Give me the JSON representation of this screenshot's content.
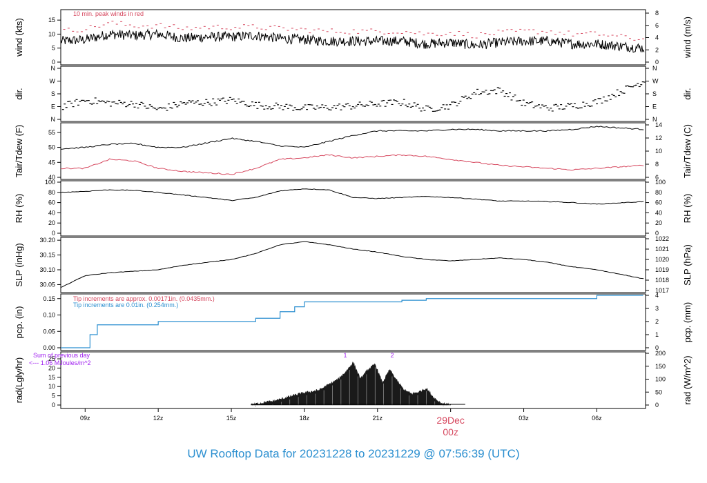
{
  "footer": "UW Rooftop Data for 20231228  to  20231229 @ 07:56:39  (UTC)",
  "colors": {
    "black": "#000000",
    "red": "#d6475e",
    "blue": "#2b8fd0",
    "purple": "#a020f0",
    "radfill": "#1a1a1a"
  },
  "x_axis": {
    "ticks": [
      "09z",
      "12z",
      "15z",
      "18z",
      "21z",
      "29Dec",
      "03z",
      "06z"
    ],
    "date_label": "29Dec",
    "date_sub": "00z"
  },
  "chart_data": [
    {
      "type": "line",
      "name": "wind",
      "ylabel_left": "wind (kts)",
      "ylabel_right": "wind (m/s)",
      "yticks_left": [
        0,
        5,
        10,
        15
      ],
      "yticks_right": [
        0,
        2,
        4,
        6,
        8
      ],
      "ylim": [
        0,
        17.5
      ],
      "annotation": "10 min. peak winds in red",
      "series": [
        {
          "color": "black",
          "x": [
            8,
            9,
            10,
            11,
            12,
            13,
            14,
            15,
            16,
            17,
            18,
            19,
            20,
            21,
            22,
            23,
            24,
            25,
            26,
            27,
            28,
            29,
            30,
            31.9
          ],
          "values": [
            7.5,
            8,
            10,
            9.5,
            10,
            8.5,
            9,
            9,
            9.5,
            8.5,
            8,
            7.5,
            7.5,
            7.5,
            7.5,
            6.5,
            7,
            6,
            7,
            7.5,
            7.5,
            6.5,
            6.5,
            5
          ]
        },
        {
          "color": "red",
          "x": [
            8,
            9,
            10,
            11,
            12,
            13,
            14,
            15,
            16,
            17,
            18,
            19,
            20,
            21,
            22,
            23,
            24,
            25,
            26,
            27,
            28,
            29,
            30,
            31.9
          ],
          "values": [
            11,
            12,
            14,
            13,
            13,
            12,
            12.5,
            12.5,
            12.5,
            12,
            11.5,
            11,
            11,
            11,
            11,
            10,
            10.5,
            9.5,
            10.5,
            11,
            11,
            10,
            10,
            8
          ]
        }
      ]
    },
    {
      "type": "scatter",
      "name": "dir",
      "ylabel_left": "dir.",
      "ylabel_right": "dir.",
      "yticklabels": [
        "N",
        "E",
        "S",
        "W",
        "N"
      ],
      "ylim": [
        0,
        360
      ],
      "series": [
        {
          "color": "black",
          "x": [
            8,
            9,
            10,
            11,
            12,
            13,
            14,
            15,
            16,
            17,
            18,
            19,
            20,
            21,
            22,
            23,
            24,
            25,
            26,
            27,
            28,
            29,
            30,
            31.9
          ],
          "values": [
            90,
            135,
            115,
            110,
            70,
            115,
            120,
            135,
            100,
            90,
            80,
            85,
            95,
            110,
            120,
            70,
            100,
            190,
            205,
            110,
            80,
            95,
            125,
            270
          ]
        }
      ]
    },
    {
      "type": "line",
      "name": "temperature",
      "ylabel_left": "Tair/Tdew (F)",
      "ylabel_right": "Tair/Tdew (C)",
      "yticks_left": [
        40,
        45,
        50,
        55
      ],
      "yticks_right": [
        6,
        8,
        10,
        12,
        14
      ],
      "ylim": [
        40,
        57.5
      ],
      "series": [
        {
          "color": "black",
          "x": [
            8,
            9,
            10,
            11,
            12,
            13,
            14,
            15,
            16,
            17,
            18,
            19,
            20,
            21,
            22,
            23,
            24,
            25,
            26,
            27,
            28,
            29,
            30,
            31.9
          ],
          "values": [
            49.5,
            50,
            51,
            51.3,
            50,
            50,
            51.5,
            53,
            52,
            50.5,
            50,
            52,
            54,
            55.5,
            55.5,
            55.5,
            56,
            56,
            55.5,
            55.5,
            55.5,
            56,
            57,
            56
          ]
        },
        {
          "color": "red",
          "x": [
            8,
            9,
            10,
            11,
            12,
            13,
            14,
            15,
            16,
            17,
            18,
            19,
            20,
            21,
            22,
            23,
            24,
            25,
            26,
            27,
            28,
            29,
            30,
            31.9
          ],
          "values": [
            43,
            43,
            46,
            45.5,
            43,
            42,
            41.5,
            41,
            43,
            46,
            46.5,
            47.5,
            46.5,
            47,
            47.5,
            47,
            46,
            45,
            44,
            43.5,
            43,
            42.5,
            43,
            44
          ]
        }
      ]
    },
    {
      "type": "line",
      "name": "rh",
      "ylabel_left": "RH (%)",
      "ylabel_right": "RH (%)",
      "yticks_left": [
        0,
        20,
        40,
        60,
        80,
        100
      ],
      "yticks_right": [
        0,
        20,
        40,
        60,
        80,
        100
      ],
      "ylim": [
        0,
        100
      ],
      "series": [
        {
          "color": "black",
          "x": [
            8,
            9,
            10,
            11,
            12,
            13,
            14,
            15,
            16,
            17,
            18,
            19,
            20,
            21,
            22,
            23,
            24,
            25,
            26,
            27,
            28,
            29,
            30,
            31.9
          ],
          "values": [
            80,
            82,
            85,
            84,
            80,
            75,
            70,
            64,
            70,
            83,
            87,
            85,
            70,
            68,
            70,
            72,
            70,
            67,
            63,
            63,
            62,
            60,
            57,
            62
          ]
        }
      ]
    },
    {
      "type": "line",
      "name": "slp",
      "ylabel_left": "SLP (inHg)",
      "ylabel_right": "SLP (hPa)",
      "yticks_left": [
        30.05,
        30.1,
        30.15,
        30.2
      ],
      "yticks_right": [
        1017,
        1018,
        1019,
        1020,
        1021,
        1022
      ],
      "ylim": [
        30.03,
        30.205
      ],
      "series": [
        {
          "color": "black",
          "x": [
            8,
            9,
            10,
            11,
            12,
            13,
            14,
            15,
            16,
            17,
            18,
            19,
            20,
            21,
            22,
            23,
            24,
            25,
            26,
            27,
            28,
            29,
            30,
            31.9
          ],
          "values": [
            30.04,
            30.08,
            30.09,
            30.095,
            30.1,
            30.115,
            30.125,
            30.135,
            30.155,
            30.185,
            30.195,
            30.185,
            30.17,
            30.16,
            30.145,
            30.135,
            30.13,
            30.135,
            30.14,
            30.135,
            30.125,
            30.11,
            30.1,
            30.07
          ]
        }
      ]
    },
    {
      "type": "line",
      "name": "precip",
      "ylabel_left": "pcp. (in)",
      "ylabel_right": "pcp. (mm)",
      "yticks_left": [
        0.0,
        0.05,
        0.1,
        0.15
      ],
      "yticks_right": [
        0,
        1,
        2,
        3,
        4
      ],
      "ylim": [
        0,
        0.16
      ],
      "annotation_1": "Tip increments are approx. 0.00171in. (0.0435mm.)",
      "annotation_2": "Tip increments are 0.01in. (0.254mm.)",
      "series": [
        {
          "color": "blue",
          "x": [
            8,
            9,
            9.2,
            9.5,
            11,
            12,
            15,
            16,
            17,
            17.6,
            18,
            19,
            20,
            22,
            23,
            25,
            30,
            31.9
          ],
          "values": [
            0,
            0,
            0.04,
            0.07,
            0.07,
            0.08,
            0.08,
            0.09,
            0.11,
            0.125,
            0.14,
            0.14,
            0.14,
            0.145,
            0.15,
            0.15,
            0.16,
            0.16
          ]
        }
      ]
    },
    {
      "type": "area",
      "name": "radiation",
      "ylabel_left": "rad(Lgly/hr)",
      "ylabel_right": "rad (W/m^2)",
      "yticks_left": [
        0,
        5,
        10,
        15,
        20,
        25
      ],
      "yticks_right": [
        0,
        50,
        100,
        150,
        200
      ],
      "ylim": [
        0,
        28
      ],
      "annotation_1": "Sum of previous day",
      "annotation_2": "<--- 1.06 MJoules/m^2",
      "peak_labels": [
        "1",
        "2"
      ],
      "series": [
        {
          "color": "radfill",
          "x": [
            15.8,
            16.2,
            16.7,
            17,
            17.4,
            17.8,
            18.2,
            18.6,
            19,
            19.4,
            19.7,
            20,
            20.3,
            20.6,
            20.9,
            21.2,
            21.5,
            21.8,
            22.1,
            22.4,
            22.7,
            23,
            23.3,
            23.6,
            24
          ],
          "values": [
            0,
            1,
            2,
            3,
            4.5,
            6,
            7,
            8,
            11,
            14,
            18,
            23,
            14,
            19,
            22,
            12,
            19,
            13,
            8,
            6,
            7,
            9,
            4,
            1,
            0
          ]
        }
      ]
    }
  ]
}
